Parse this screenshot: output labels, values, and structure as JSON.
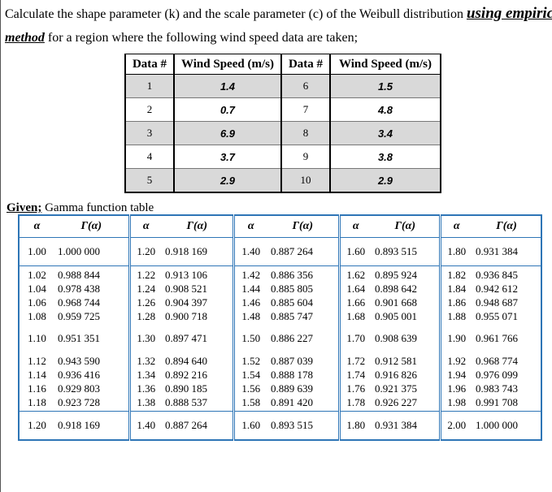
{
  "question": {
    "line1_prefix": "Calculate the shape parameter (k) and the scale parameter (c) of the Weibull distribution ",
    "line1_emph": "using empirica",
    "line2_emph": "method",
    "line2_rest": " for a region where the following wind speed data are taken;"
  },
  "wind_table": {
    "headers": [
      "Data #",
      "Wind Speed (m/s)",
      "Data #",
      "Wind Speed (m/s)"
    ],
    "rows": [
      [
        "1",
        "1.4",
        "6",
        "1.5"
      ],
      [
        "2",
        "0.7",
        "7",
        "4.8"
      ],
      [
        "3",
        "6.9",
        "8",
        "3.4"
      ],
      [
        "4",
        "3.7",
        "9",
        "3.8"
      ],
      [
        "5",
        "2.9",
        "10",
        "2.9"
      ]
    ]
  },
  "given": {
    "label": "Given;",
    "rest": " Gamma function table"
  },
  "gamma_table": {
    "headers": [
      "α",
      "Γ(α)",
      "α",
      "Γ(α)",
      "α",
      "Γ(α)",
      "α",
      "Γ(α)",
      "α",
      "Γ(α)"
    ],
    "blocks": [
      {
        "a1": [
          "1.00"
        ],
        "g1": [
          "1.000 000"
        ],
        "a2": [
          "1.20"
        ],
        "g2": [
          "0.918 169"
        ],
        "a3": [
          "1.40"
        ],
        "g3": [
          "0.887 264"
        ],
        "a4": [
          "1.60"
        ],
        "g4": [
          "0.893 515"
        ],
        "a5": [
          "1.80"
        ],
        "g5": [
          "0.931 384"
        ]
      },
      {
        "a1": [
          "1.02",
          "1.04",
          "1.06",
          "1.08"
        ],
        "g1": [
          "0.988 844",
          "0.978 438",
          "0.968 744",
          "0.959 725"
        ],
        "a2": [
          "1.22",
          "1.24",
          "1.26",
          "1.28"
        ],
        "g2": [
          "0.913 106",
          "0.908 521",
          "0.904 397",
          "0.900 718"
        ],
        "a3": [
          "1.42",
          "1.44",
          "1.46",
          "1.48"
        ],
        "g3": [
          "0.886 356",
          "0.885 805",
          "0.885 604",
          "0.885 747"
        ],
        "a4": [
          "1.62",
          "1.64",
          "1.66",
          "1.68"
        ],
        "g4": [
          "0.895 924",
          "0.898 642",
          "0.901 668",
          "0.905 001"
        ],
        "a5": [
          "1.82",
          "1.84",
          "1.86",
          "1.88"
        ],
        "g5": [
          "0.936 845",
          "0.942 612",
          "0.948 687",
          "0.955 071"
        ]
      },
      {
        "a1": [
          "1.10"
        ],
        "g1": [
          "0.951 351"
        ],
        "a2": [
          "1.30"
        ],
        "g2": [
          "0.897 471"
        ],
        "a3": [
          "1.50"
        ],
        "g3": [
          "0.886 227"
        ],
        "a4": [
          "1.70"
        ],
        "g4": [
          "0.908 639"
        ],
        "a5": [
          "1.90"
        ],
        "g5": [
          "0.961 766"
        ]
      },
      {
        "a1": [
          "1.12",
          "1.14",
          "1.16",
          "1.18"
        ],
        "g1": [
          "0.943 590",
          "0.936 416",
          "0.929 803",
          "0.923 728"
        ],
        "a2": [
          "1.32",
          "1.34",
          "1.36",
          "1.38"
        ],
        "g2": [
          "0.894 640",
          "0.892 216",
          "0.890 185",
          "0.888 537"
        ],
        "a3": [
          "1.52",
          "1.54",
          "1.56",
          "1.58"
        ],
        "g3": [
          "0.887 039",
          "0.888 178",
          "0.889 639",
          "0.891 420"
        ],
        "a4": [
          "1.72",
          "1.74",
          "1.76",
          "1.78"
        ],
        "g4": [
          "0.912 581",
          "0.916 826",
          "0.921 375",
          "0.926 227"
        ],
        "a5": [
          "1.92",
          "1.94",
          "1.96",
          "1.98"
        ],
        "g5": [
          "0.968 774",
          "0.976 099",
          "0.983 743",
          "0.991 708"
        ]
      },
      {
        "a1": [
          "1.20"
        ],
        "g1": [
          "0.918 169"
        ],
        "a2": [
          "1.40"
        ],
        "g2": [
          "0.887 264"
        ],
        "a3": [
          "1.60"
        ],
        "g3": [
          "0.893 515"
        ],
        "a4": [
          "1.80"
        ],
        "g4": [
          "0.931 384"
        ],
        "a5": [
          "2.00"
        ],
        "g5": [
          "1.000 000"
        ]
      }
    ]
  }
}
